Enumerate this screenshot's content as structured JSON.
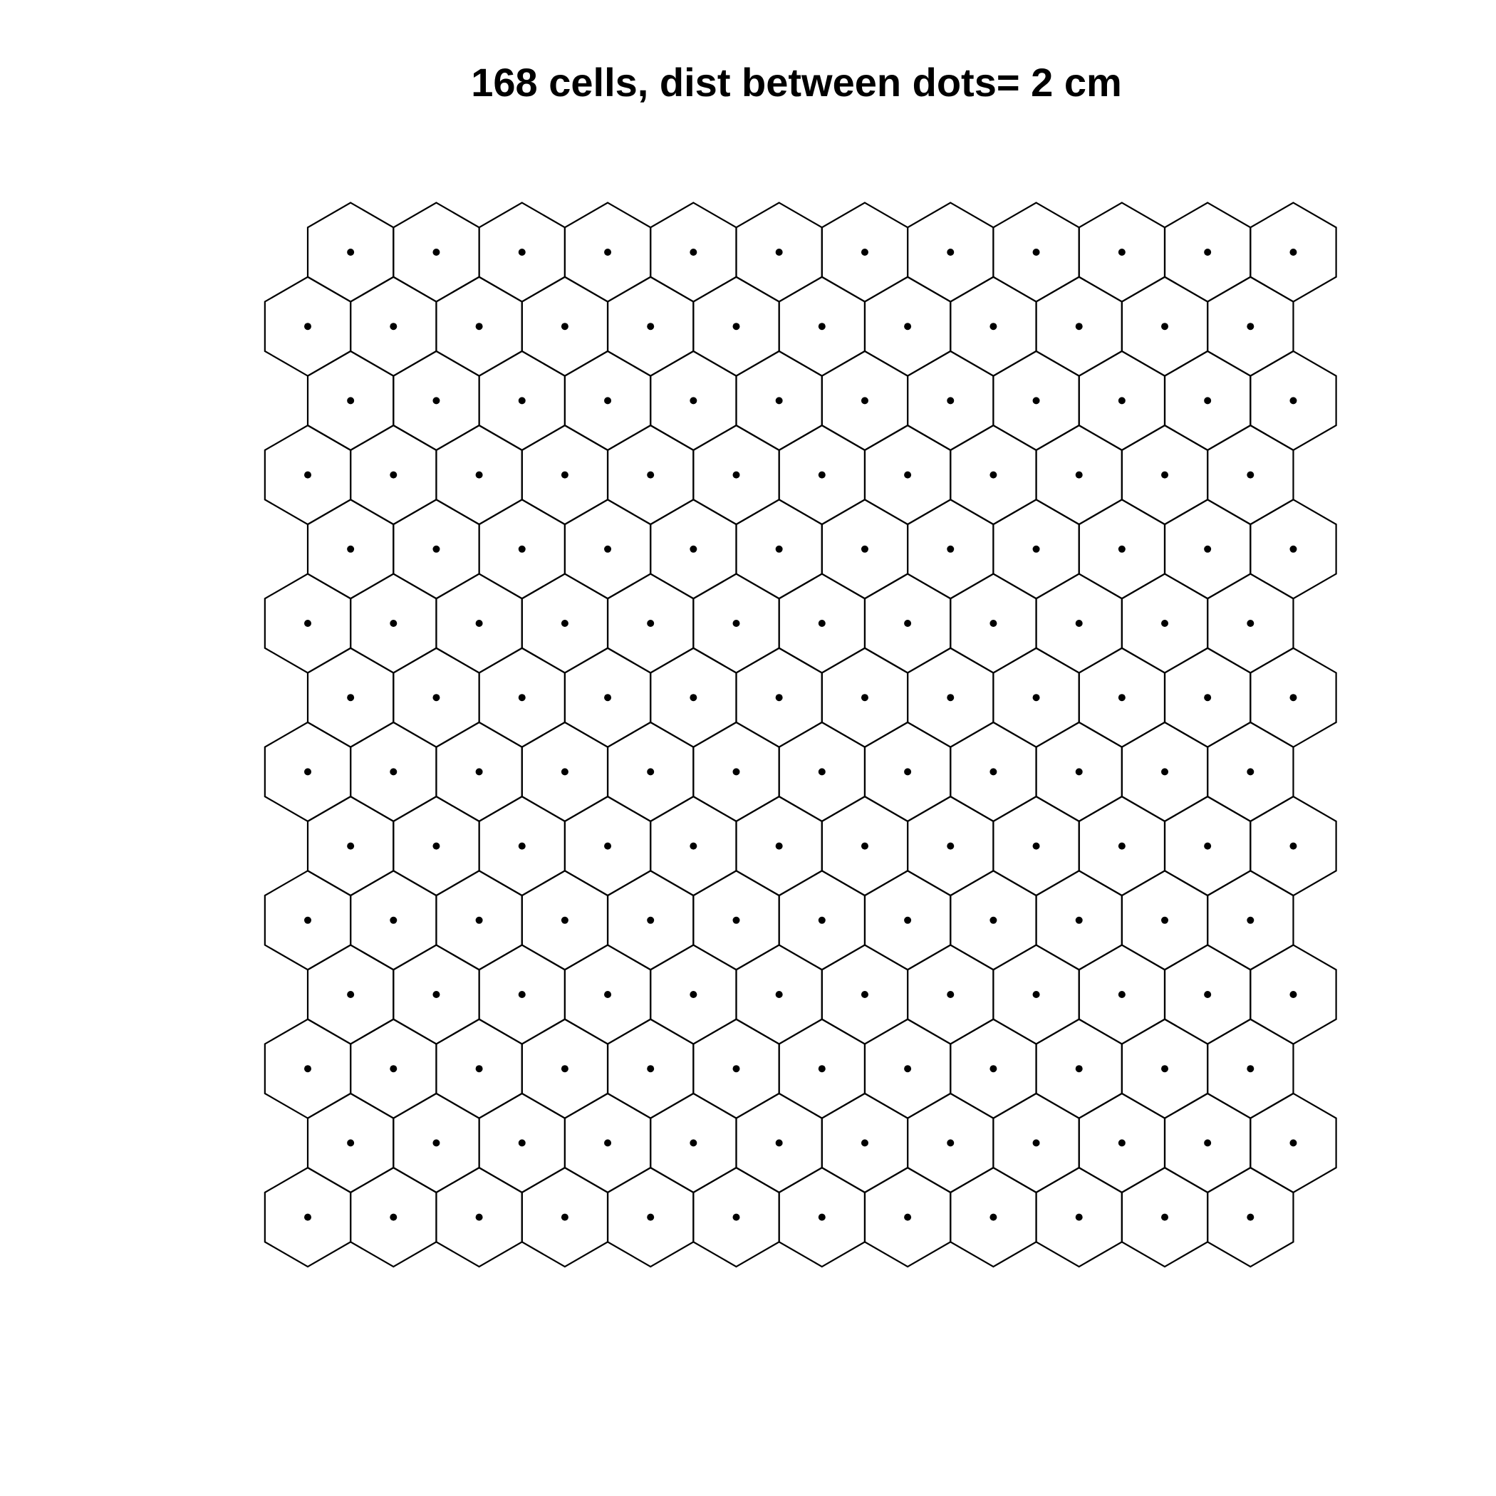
{
  "title": "168 cells, dist between dots= 2 cm",
  "grid": {
    "rows": 14,
    "columns": 12,
    "cell_shape": "hexagon",
    "dot_spacing_cm": 2,
    "odd_rows_offset": "right"
  },
  "colors": {
    "background": "#ffffff",
    "stroke": "#000000",
    "dot": "#000000"
  }
}
